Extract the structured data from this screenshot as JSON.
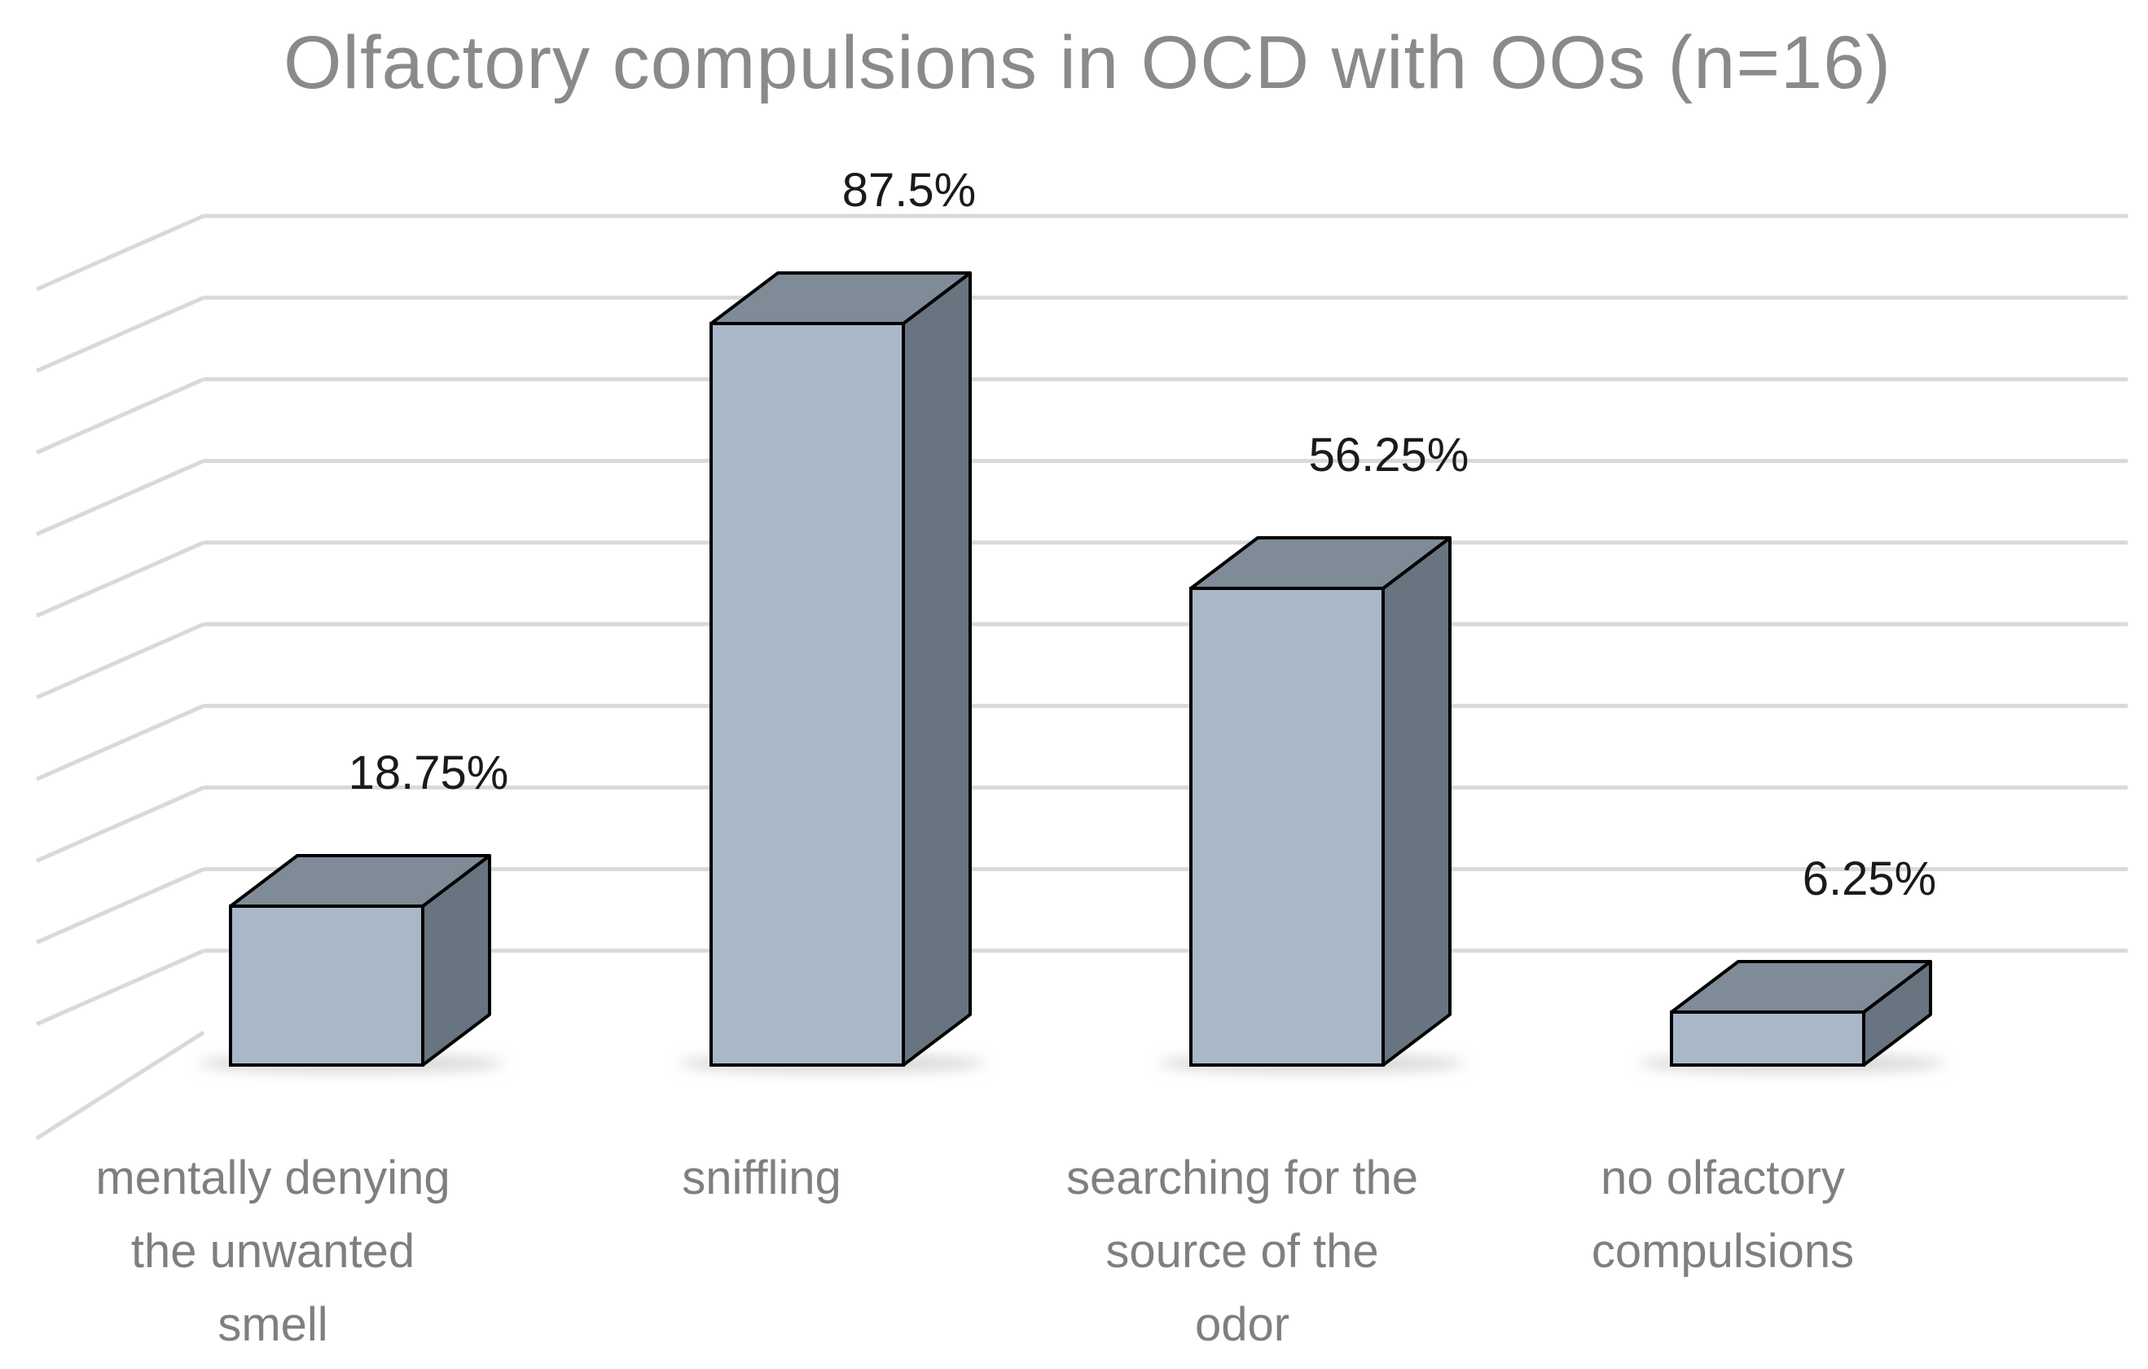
{
  "chart_data": {
    "type": "bar",
    "title": "Olfactory compulsions in OCD with OOs (n=16)",
    "categories": [
      [
        "mentally denying",
        "the unwanted",
        "smell"
      ],
      [
        "sniffling"
      ],
      [
        "searching for the",
        "source of the",
        "odor"
      ],
      [
        "no olfactory",
        "compulsions"
      ]
    ],
    "values": [
      18.75,
      87.5,
      56.25,
      6.25
    ],
    "data_labels": [
      "18.75%",
      "87.5%",
      "56.25%",
      "6.25%"
    ],
    "ylim": [
      0,
      100
    ],
    "xlabel": "",
    "ylabel": "",
    "grid": true,
    "legend": "none",
    "colors": {
      "bar_front": "#a9b7c9",
      "bar_top": "#7f8b97",
      "bar_side": "#687480",
      "bar_stroke": "#000000",
      "grid": "#d9d9d9",
      "shadow": "#d9d9d9"
    }
  }
}
